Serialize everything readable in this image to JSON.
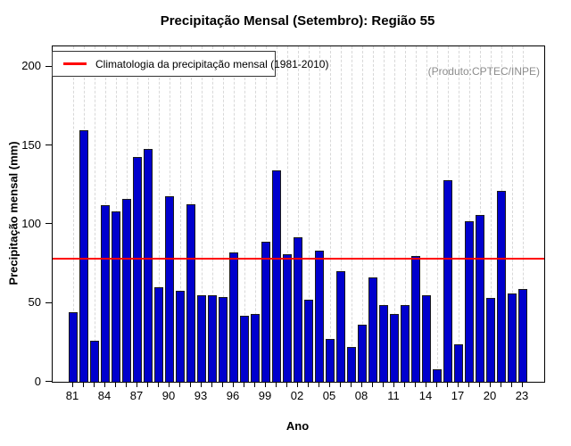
{
  "title": "Precipitação Mensal (Setembro): Região 55",
  "watermark": "(Produto:CPTEC/INPE)",
  "legend": {
    "label": "Climatologia da precipitação mensal (1981-2010)",
    "line_color": "#ff0000"
  },
  "chart_data": {
    "type": "bar",
    "title": "Precipitação Mensal (Setembro): Região 55",
    "xlabel": "Ano",
    "ylabel": "Precipitação mensal (mm)",
    "ylim": [
      0,
      213
    ],
    "yticks": [
      0,
      50,
      100,
      150,
      200
    ],
    "grid": "vertical-dashed-per-year",
    "legend_position": "top-left",
    "bar_color": "#0000CD",
    "climatology_value": 78,
    "climatology_line_color": "#ff0000",
    "years": [
      1981,
      1982,
      1983,
      1984,
      1985,
      1986,
      1987,
      1988,
      1989,
      1990,
      1991,
      1992,
      1993,
      1994,
      1995,
      1996,
      1997,
      1998,
      1999,
      2000,
      2001,
      2002,
      2003,
      2004,
      2005,
      2006,
      2007,
      2008,
      2009,
      2010,
      2011,
      2012,
      2013,
      2014,
      2015,
      2016,
      2017,
      2018,
      2019,
      2020,
      2021,
      2022,
      2023
    ],
    "values": [
      44,
      160,
      26,
      112,
      108,
      116,
      143,
      148,
      60,
      118,
      58,
      113,
      55,
      55,
      54,
      82,
      42,
      43,
      89,
      134,
      81,
      92,
      52,
      83,
      27,
      70,
      22,
      36,
      66,
      49,
      43,
      49,
      80,
      55,
      8,
      128,
      24,
      102,
      106,
      53,
      121,
      56,
      59
    ],
    "x_tick_label_years": [
      1981,
      1984,
      1987,
      1990,
      1993,
      1996,
      1999,
      2002,
      2005,
      2008,
      2011,
      2014,
      2017,
      2020,
      2023
    ],
    "x_tick_labels": [
      "81",
      "84",
      "87",
      "90",
      "93",
      "96",
      "99",
      "02",
      "05",
      "08",
      "11",
      "14",
      "17",
      "20",
      "23"
    ]
  }
}
